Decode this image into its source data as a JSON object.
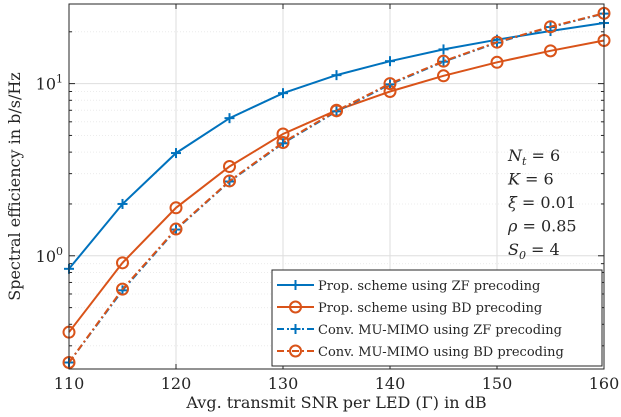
{
  "chart_data": {
    "type": "line",
    "xlabel": "Avg. transmit SNR per LED (Γ) in dB",
    "ylabel": "Spectral efficiency in b/s/Hz",
    "x_scale": "linear",
    "y_scale": "log",
    "xlim": [
      110,
      160
    ],
    "ylim": [
      0.22,
      29
    ],
    "x_ticks": [
      110,
      120,
      130,
      140,
      150,
      160
    ],
    "x_tick_labels": [
      "110",
      "120",
      "130",
      "140",
      "150",
      "160"
    ],
    "y_ticks": [
      1,
      10
    ],
    "grid": true,
    "minor_grid": true,
    "legend_position": "bottom-right",
    "annotations": [
      {
        "var": "N",
        "sub": "t",
        "val": "6"
      },
      {
        "var": "K",
        "sub": "",
        "val": "6"
      },
      {
        "var": "ξ",
        "sub": "",
        "val": "0.01"
      },
      {
        "var": "ρ",
        "sub": "",
        "val": "0.85"
      },
      {
        "var": "S",
        "sub": "0",
        "val": "4"
      }
    ],
    "x": [
      110,
      115,
      120,
      125,
      130,
      135,
      140,
      145,
      150,
      155,
      160
    ],
    "series": [
      {
        "name": "Prop. scheme using ZF precoding",
        "color": "#0072BD",
        "line": "solid",
        "marker": "plus",
        "values": [
          0.84,
          2.0,
          3.95,
          6.3,
          8.8,
          11.2,
          13.5,
          15.8,
          18.0,
          20.2,
          22.5
        ]
      },
      {
        "name": "Prop. scheme using BD precoding",
        "color": "#D95319",
        "line": "solid",
        "marker": "circle",
        "values": [
          0.36,
          0.91,
          1.9,
          3.3,
          5.1,
          7.0,
          9.0,
          11.1,
          13.3,
          15.5,
          17.8
        ]
      },
      {
        "name": "Conv. MU-MIMO using ZF precoding",
        "color": "#0072BD",
        "line": "dashdot",
        "marker": "plus",
        "values": [
          0.24,
          0.63,
          1.42,
          2.7,
          4.5,
          6.9,
          9.9,
          13.4,
          17.3,
          21.3,
          25.5
        ]
      },
      {
        "name": "Conv. MU-MIMO using BD precoding",
        "color": "#D95319",
        "line": "dashdot",
        "marker": "circle",
        "values": [
          0.24,
          0.64,
          1.43,
          2.72,
          4.55,
          6.95,
          10.0,
          13.5,
          17.4,
          21.4,
          25.6
        ]
      }
    ]
  }
}
